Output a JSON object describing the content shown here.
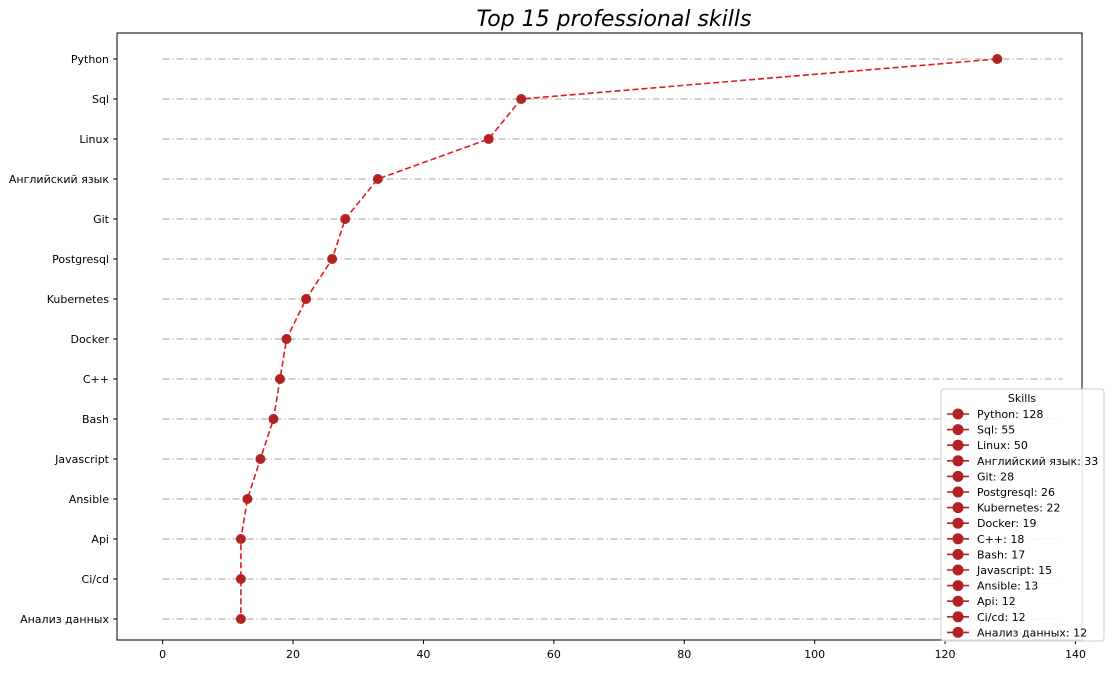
{
  "chart_data": {
    "type": "line",
    "title": "Top 15 professional skills",
    "xlabel": "",
    "ylabel": "",
    "xlim": [
      -7,
      141
    ],
    "xticks": [
      0,
      20,
      40,
      60,
      80,
      100,
      120,
      140
    ],
    "categories": [
      "Python",
      "Sql",
      "Linux",
      "Английский язык",
      "Git",
      "Postgresql",
      "Kubernetes",
      "Docker",
      "C++",
      "Bash",
      "Javascript",
      "Ansible",
      "Api",
      "Ci/cd",
      "Анализ данных"
    ],
    "values": [
      128,
      55,
      50,
      33,
      28,
      26,
      22,
      19,
      18,
      17,
      15,
      13,
      12,
      12,
      12
    ],
    "legend": {
      "title": "Skills",
      "position": "lower-right",
      "entries": [
        "Python: 128",
        "Sql: 55",
        "Linux: 50",
        "Английский язык: 33",
        "Git: 28",
        "Postgresql: 26",
        "Kubernetes: 22",
        "Docker: 19",
        "C++: 18",
        "Bash: 17",
        "Javascript: 15",
        "Ansible: 13",
        "Api: 12",
        "Ci/cd: 12",
        "Анализ данных: 12"
      ]
    },
    "grid": false,
    "guide_line_x_range": [
      0,
      138
    ],
    "colors": {
      "line": "#e31a1c",
      "marker": "#b22222",
      "guide": "#a0a0a0",
      "axes": "#000000"
    }
  }
}
